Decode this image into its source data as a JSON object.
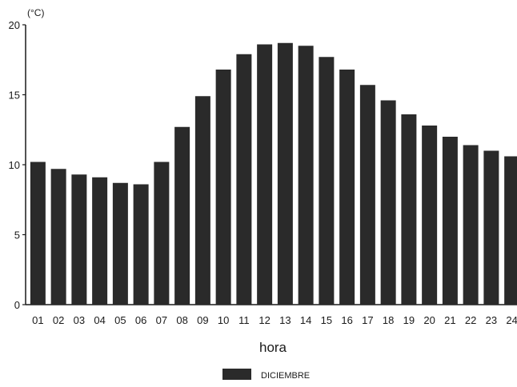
{
  "chart_data": {
    "type": "bar",
    "categories": [
      "01",
      "02",
      "03",
      "04",
      "05",
      "06",
      "07",
      "08",
      "09",
      "10",
      "11",
      "12",
      "13",
      "14",
      "15",
      "16",
      "17",
      "18",
      "19",
      "20",
      "21",
      "22",
      "23",
      "24"
    ],
    "series": [
      {
        "name": "DICIEMBRE",
        "values": [
          10.2,
          9.7,
          9.3,
          9.1,
          8.7,
          8.6,
          10.2,
          12.7,
          14.9,
          16.8,
          17.9,
          18.6,
          18.7,
          18.5,
          17.7,
          16.8,
          15.7,
          14.6,
          13.6,
          12.8,
          12.0,
          11.4,
          11.0,
          10.6
        ]
      }
    ],
    "title": "",
    "xlabel": "hora",
    "ylabel": "(°C)",
    "ylim": [
      0,
      20
    ],
    "yticks": [
      "0",
      "5",
      "10",
      "15",
      "20"
    ],
    "grid": false,
    "legend_position": "bottom-center",
    "colors": {
      "bar": "#2a2a2a",
      "axis": "#1a1a1a"
    }
  }
}
